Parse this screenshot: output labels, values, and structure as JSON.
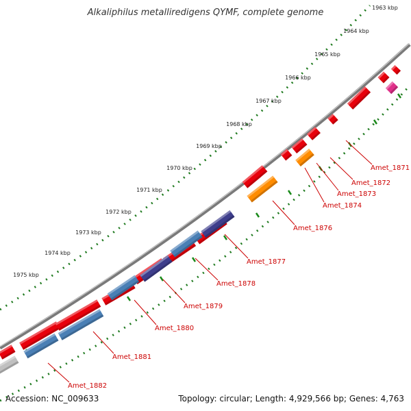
{
  "title": "Alkaliphilus metalliredigens QYMF, complete genome",
  "footer": {
    "accession": "Accession: NC_009633",
    "topology": "Topology: circular; Length: 4,929,566 bp; Genes: 4,763"
  },
  "scale": {
    "labels": [
      "1963 kbp",
      "1964 kbp",
      "1965 kbp",
      "1966 kbp",
      "1967 kbp",
      "1968 kbp",
      "1969 kbp",
      "1970 kbp",
      "1971 kbp",
      "1972 kbp",
      "1973 kbp",
      "1974 kbp",
      "1975 kbp"
    ]
  },
  "genes": [
    {
      "name": "Amet_1871",
      "strand": "+",
      "color": "#e8000b"
    },
    {
      "name": "Amet_1872",
      "strand": "+",
      "color": "#e8000b"
    },
    {
      "name": "Amet_1873",
      "strand": "+",
      "color": "#e8000b"
    },
    {
      "name": "Amet_1874",
      "strand": "-",
      "color": "#ff8c00"
    },
    {
      "name": "Amet_1876",
      "strand": "-",
      "color": "#ff8c00"
    },
    {
      "name": "Amet_1877",
      "strand": "-",
      "color": "#3e3e8c"
    },
    {
      "name": "Amet_1878",
      "strand": "-",
      "color": "#4a7fb5"
    },
    {
      "name": "Amet_1879",
      "strand": "-",
      "color": "#3e3e8c"
    },
    {
      "name": "Amet_1880",
      "strand": "-",
      "color": "#4a7fb5"
    },
    {
      "name": "Amet_1881",
      "strand": "-",
      "color": "#4a7fb5"
    },
    {
      "name": "Amet_1882",
      "strand": "-",
      "color": "#c0c0c0"
    }
  ],
  "colors": {
    "backbone": "#7a7a7a",
    "scale_dots": "#1f7a1f",
    "scale_ticks": "#1a8a1a",
    "label_lines": "#cc0000",
    "gene_red": "#e8000b",
    "gene_magenta": "#e0308a"
  }
}
